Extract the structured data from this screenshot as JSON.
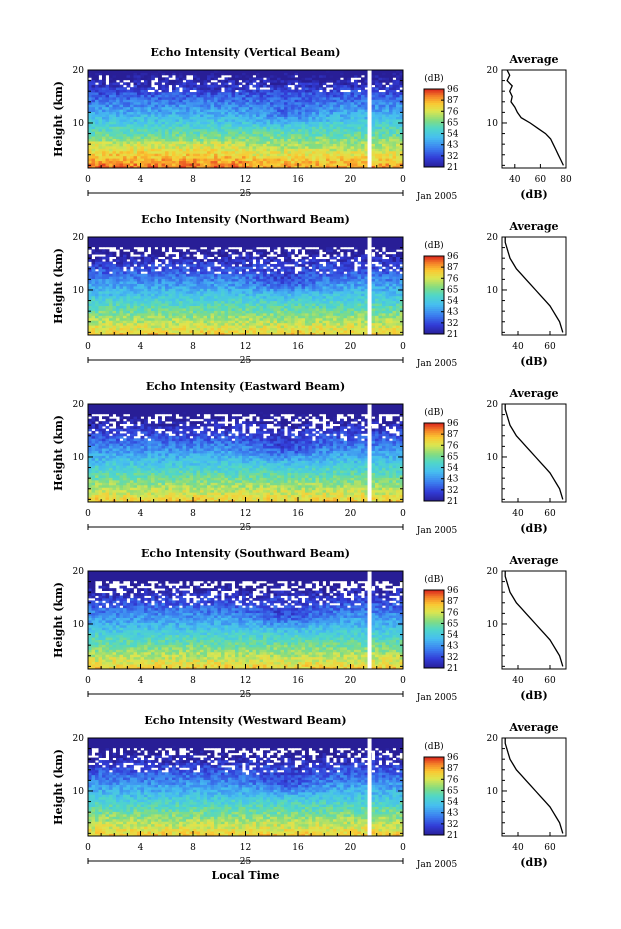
{
  "common": {
    "height_ticks": [
      "20",
      "10"
    ],
    "time_ticks": [
      "0",
      "4",
      "8",
      "12",
      "16",
      "20",
      "0"
    ],
    "date_day": "25",
    "date_label": "Jan 2005",
    "colorbar_unit": "(dB)",
    "colorbar_ticks": [
      "96",
      "87",
      "76",
      "65",
      "54",
      "43",
      "32",
      "21"
    ],
    "avg_title": "Average",
    "avg_xlabel": "(dB)",
    "xlabel": "Local Time"
  },
  "chart_data": [
    {
      "type": "heatmap",
      "title": "Echo Intensity (Vertical Beam)",
      "ylabel": "Height (km)",
      "ylim": [
        1.5,
        20
      ],
      "xlim_hours": [
        0,
        24
      ],
      "colorbar_range_db": [
        21,
        96
      ],
      "average_profile": {
        "xlabel": "(dB)",
        "xticks": [
          "40",
          "60",
          "80"
        ],
        "xlim": [
          30,
          80
        ],
        "height_km": [
          2,
          3,
          4,
          5,
          6,
          7,
          8,
          9,
          10,
          11,
          12,
          13,
          14,
          15,
          16,
          17,
          18,
          19,
          20
        ],
        "echo_db": [
          78,
          76,
          74,
          72,
          70,
          68,
          64,
          58,
          52,
          45,
          42,
          40,
          37,
          38,
          36,
          38,
          34,
          36,
          34
        ]
      }
    },
    {
      "type": "heatmap",
      "title": "Echo Intensity (Northward Beam)",
      "ylabel": "Height (km)",
      "ylim": [
        1.5,
        20
      ],
      "xlim_hours": [
        0,
        24
      ],
      "colorbar_range_db": [
        21,
        96
      ],
      "average_profile": {
        "xlabel": "(dB)",
        "xticks": [
          "40",
          "60"
        ],
        "xlim": [
          30,
          70
        ],
        "height_km": [
          2,
          3,
          4,
          5,
          6,
          7,
          8,
          9,
          10,
          11,
          12,
          13,
          14,
          15,
          16,
          17,
          18,
          19,
          20
        ],
        "echo_db": [
          68,
          67,
          66,
          64,
          62,
          60,
          57,
          54,
          51,
          48,
          45,
          42,
          39,
          37,
          35,
          34,
          33,
          32,
          32
        ]
      }
    },
    {
      "type": "heatmap",
      "title": "Echo Intensity (Eastward Beam)",
      "ylabel": "Height (km)",
      "ylim": [
        1.5,
        20
      ],
      "xlim_hours": [
        0,
        24
      ],
      "colorbar_range_db": [
        21,
        96
      ],
      "average_profile": {
        "xlabel": "(dB)",
        "xticks": [
          "40",
          "60"
        ],
        "xlim": [
          30,
          70
        ],
        "height_km": [
          2,
          3,
          4,
          5,
          6,
          7,
          8,
          9,
          10,
          11,
          12,
          13,
          14,
          15,
          16,
          17,
          18,
          19,
          20
        ],
        "echo_db": [
          68,
          67,
          66,
          64,
          62,
          60,
          57,
          54,
          51,
          48,
          45,
          42,
          39,
          37,
          35,
          34,
          33,
          32,
          32
        ]
      }
    },
    {
      "type": "heatmap",
      "title": "Echo Intensity (Southward Beam)",
      "ylabel": "Height (km)",
      "ylim": [
        1.5,
        20
      ],
      "xlim_hours": [
        0,
        24
      ],
      "colorbar_range_db": [
        21,
        96
      ],
      "average_profile": {
        "xlabel": "(dB)",
        "xticks": [
          "40",
          "60"
        ],
        "xlim": [
          30,
          70
        ],
        "height_km": [
          2,
          3,
          4,
          5,
          6,
          7,
          8,
          9,
          10,
          11,
          12,
          13,
          14,
          15,
          16,
          17,
          18,
          19,
          20
        ],
        "echo_db": [
          68,
          67,
          66,
          64,
          62,
          60,
          57,
          54,
          51,
          48,
          45,
          42,
          39,
          37,
          35,
          34,
          33,
          32,
          32
        ]
      }
    },
    {
      "type": "heatmap",
      "title": "Echo Intensity (Westward Beam)",
      "ylabel": "Height (km)",
      "ylim": [
        1.5,
        20
      ],
      "xlim_hours": [
        0,
        24
      ],
      "colorbar_range_db": [
        21,
        96
      ],
      "average_profile": {
        "xlabel": "(dB)",
        "xticks": [
          "40",
          "60"
        ],
        "xlim": [
          30,
          70
        ],
        "height_km": [
          2,
          3,
          4,
          5,
          6,
          7,
          8,
          9,
          10,
          11,
          12,
          13,
          14,
          15,
          16,
          17,
          18,
          19,
          20
        ],
        "echo_db": [
          68,
          67,
          66,
          64,
          62,
          60,
          57,
          54,
          51,
          48,
          45,
          42,
          39,
          37,
          35,
          34,
          33,
          32,
          32
        ]
      }
    }
  ]
}
